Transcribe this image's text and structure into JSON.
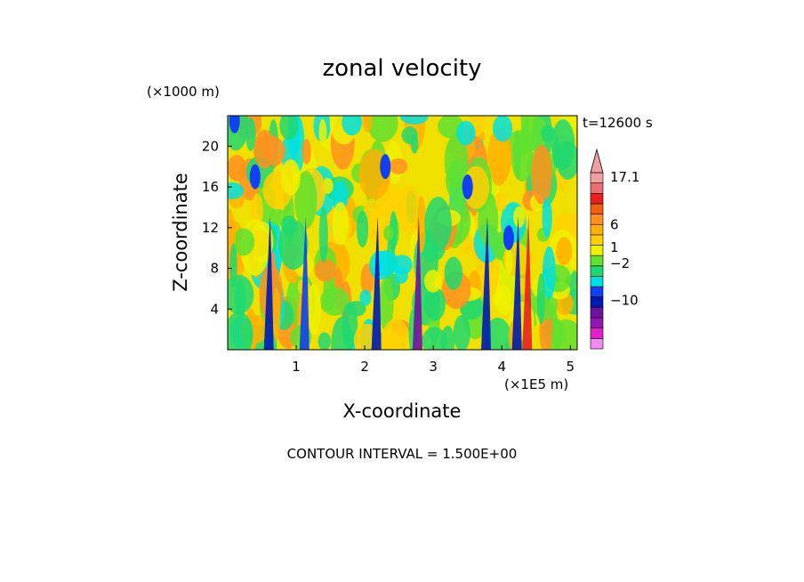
{
  "chart_data": {
    "type": "heatmap",
    "title": "zonal velocity",
    "time_label": "t=12600 s",
    "xlabel": "X-coordinate",
    "ylabel": "Z-coordinate",
    "x_scale_label": "(×1E5 m)",
    "y_scale_label": "(×1000 m)",
    "xlim": [
      0,
      5.1
    ],
    "ylim": [
      0,
      23
    ],
    "x_ticks": [
      "1",
      "2",
      "3",
      "4",
      "5"
    ],
    "y_ticks": [
      "4",
      "8",
      "12",
      "16",
      "20"
    ],
    "footer": "CONTOUR INTERVAL = 1.500E+00",
    "colorbar": {
      "labels": [
        "17.1",
        "6",
        "1",
        "−2",
        "−10"
      ],
      "colors": [
        "#f08cf0",
        "#e020c8",
        "#9018b0",
        "#7010a0",
        "#0018b0",
        "#1040f0",
        "#00e0e0",
        "#20d870",
        "#60e030",
        "#f0f000",
        "#ffd000",
        "#ffb000",
        "#ff9020",
        "#f06010",
        "#e82020",
        "#e87070",
        "#f0a0a0"
      ]
    }
  }
}
